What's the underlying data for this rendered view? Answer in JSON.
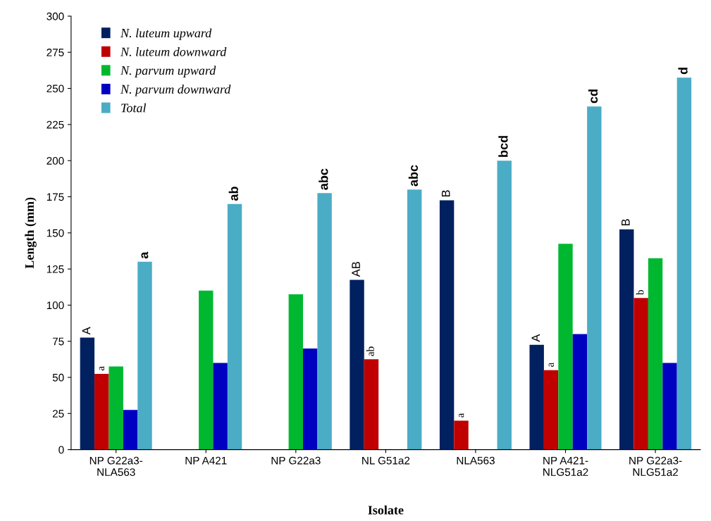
{
  "chart_data": {
    "type": "bar",
    "xlabel": "Isolate",
    "ylabel": "Length (mm)",
    "categories": [
      "NP G22a3-\nNLA563",
      "NP A421",
      "NP G22a3",
      "NL G51a2",
      "NLA563",
      "NP A421-\nNLG51a2",
      "NP G22a3-\nNLG51a2"
    ],
    "series": [
      {
        "name": "N. luteum upward",
        "color": "#002060",
        "values": [
          77.5,
          null,
          null,
          117.5,
          172.5,
          72.5,
          152.5
        ],
        "value_labels": [
          "A",
          null,
          null,
          "AB",
          "B",
          "A",
          "B"
        ]
      },
      {
        "name": "N. luteum downward",
        "color": "#c00000",
        "values": [
          52.5,
          null,
          null,
          62.5,
          20,
          55,
          105
        ],
        "value_labels": [
          "a",
          null,
          null,
          "ab",
          "a",
          "a",
          "b"
        ]
      },
      {
        "name": "N. parvum upward",
        "color": "#00b830",
        "values": [
          57.5,
          110,
          107.5,
          null,
          null,
          142.5,
          132.5
        ]
      },
      {
        "name": "N. parvum downward",
        "color": "#0000c0",
        "values": [
          27.5,
          60,
          70,
          null,
          null,
          80,
          60
        ]
      },
      {
        "name": "Total",
        "color": "#4bacc6",
        "values": [
          130,
          170,
          177.5,
          180,
          200,
          237.5,
          257.5
        ],
        "value_labels": [
          "a",
          "ab",
          "abc",
          "abc",
          "bcd",
          "cd",
          "d"
        ]
      }
    ],
    "ylim": [
      0,
      300
    ],
    "yticks": [
      0,
      25,
      50,
      75,
      100,
      125,
      150,
      175,
      200,
      225,
      250,
      275,
      300
    ],
    "grid": false,
    "legend": "top left"
  }
}
